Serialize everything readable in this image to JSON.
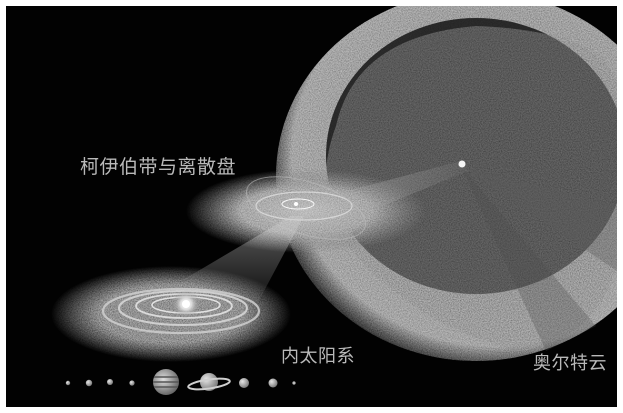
{
  "labels": {
    "kuiper": "柯伊伯带与离散盘",
    "inner": "内太阳系",
    "oort": "奥尔特云"
  },
  "colors": {
    "background": "#020202",
    "label": "#b9b9b9",
    "cloud": "#7a7a7a"
  },
  "planets": [
    {
      "name": "mercury-icon"
    },
    {
      "name": "venus-icon"
    },
    {
      "name": "earth-icon"
    },
    {
      "name": "mars-icon"
    },
    {
      "name": "jupiter-icon"
    },
    {
      "name": "saturn-icon"
    },
    {
      "name": "uranus-icon"
    },
    {
      "name": "neptune-icon"
    },
    {
      "name": "pluto-icon"
    }
  ]
}
